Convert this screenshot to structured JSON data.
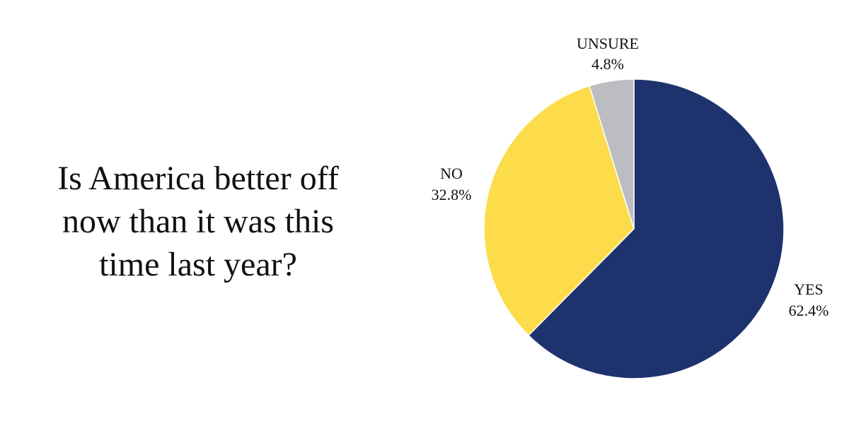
{
  "question": {
    "lines": [
      "Is America better off",
      "now than it was this",
      "time last year?"
    ]
  },
  "chart_data": {
    "type": "pie",
    "title": "",
    "slices": [
      {
        "label": "YES",
        "value": 62.4,
        "value_label": "62.4%",
        "color": "#1e336e"
      },
      {
        "label": "NO",
        "value": 32.8,
        "value_label": "32.8%",
        "color": "#fddc4b"
      },
      {
        "label": "UNSURE",
        "value": 4.8,
        "value_label": "4.8%",
        "color": "#bbbdc0"
      }
    ],
    "start_angle_deg": 0,
    "direction": "clockwise",
    "legend": "none",
    "labels": "outside"
  }
}
